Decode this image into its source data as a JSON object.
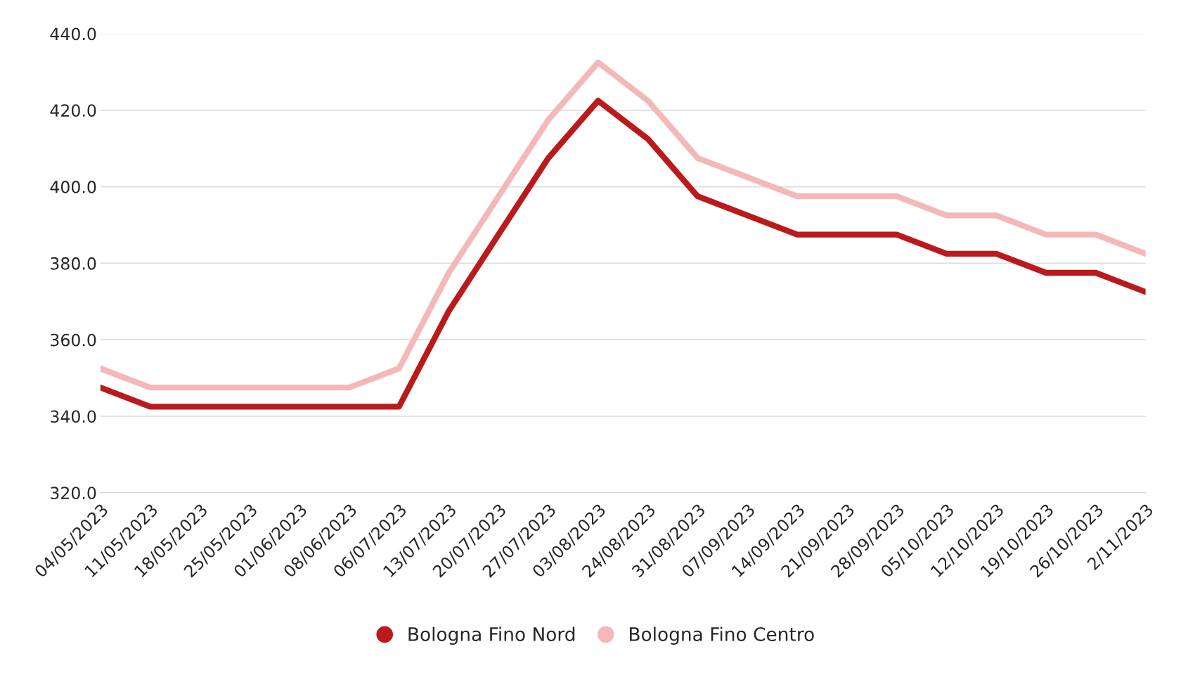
{
  "chart_data": {
    "type": "line",
    "categories": [
      "04/05/2023",
      "11/05/2023",
      "18/05/2023",
      "25/05/2023",
      "01/06/2023",
      "08/06/2023",
      "06/07/2023",
      "13/07/2023",
      "20/07/2023",
      "27/07/2023",
      "03/08/2023",
      "24/08/2023",
      "31/08/2023",
      "07/09/2023",
      "14/09/2023",
      "21/09/2023",
      "28/09/2023",
      "05/10/2023",
      "12/10/2023",
      "19/10/2023",
      "26/10/2023",
      "2/11/2023"
    ],
    "series": [
      {
        "name": "Bologna Fino Nord",
        "color": "#bb1a1c",
        "values": [
          347.5,
          342.5,
          342.5,
          342.5,
          342.5,
          342.5,
          342.5,
          367.5,
          387.5,
          407.5,
          422.5,
          412.5,
          397.5,
          392.5,
          387.5,
          387.5,
          387.5,
          382.5,
          382.5,
          377.5,
          377.5,
          372.5
        ]
      },
      {
        "name": "Bologna Fino Centro",
        "color": "#f4b8b8",
        "values": [
          352.5,
          347.5,
          347.5,
          347.5,
          347.5,
          347.5,
          352.5,
          377.5,
          397.5,
          417.5,
          432.5,
          422.5,
          407.5,
          402.5,
          397.5,
          397.5,
          397.5,
          392.5,
          392.5,
          387.5,
          387.5,
          382.5
        ]
      }
    ],
    "ylim": [
      320,
      440
    ],
    "yticks": [
      {
        "value": 320,
        "label": "320.0"
      },
      {
        "value": 340,
        "label": "340.0"
      },
      {
        "value": 360,
        "label": "360.0"
      },
      {
        "value": 380,
        "label": "380.0"
      },
      {
        "value": 400,
        "label": "400.0"
      },
      {
        "value": 420,
        "label": "420.0"
      },
      {
        "value": 440,
        "label": "440.0"
      }
    ],
    "grid": "y",
    "legend": "bottom",
    "marker": "none",
    "line_style": "solid"
  }
}
